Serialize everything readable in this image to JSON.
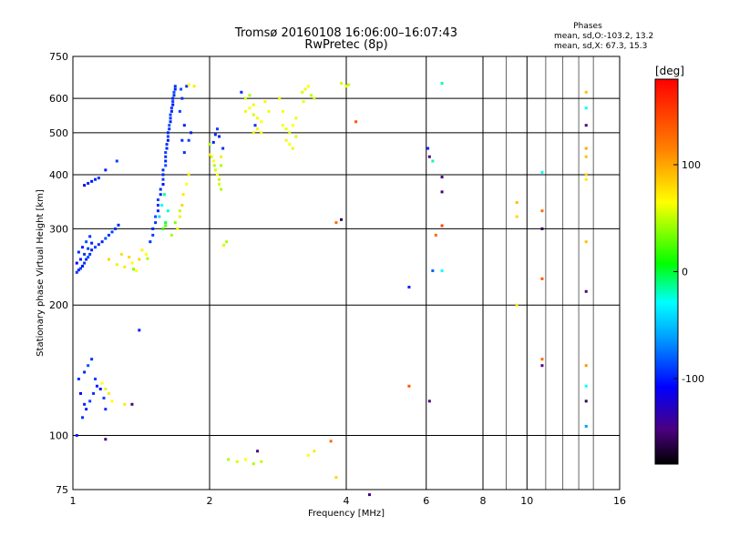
{
  "header": {
    "title_line1": "Tromsø 20160108 16:06:00–16:07:43",
    "title_line2": "RwPretec (8p)",
    "phases_title": "Phases",
    "phases_o": "mean, sd,O:-103.2, 13.2",
    "phases_x": "mean, sd,X:  67.3, 15.3"
  },
  "chart_data": {
    "type": "scatter",
    "title": "Tromsø 20160108 16:06:00–16:07:43",
    "subtitle": "RwPretec (8p)",
    "xlabel": "Frequency [MHz]",
    "ylabel": "Stationary phase Virtual Height [km]",
    "x_scale": "log",
    "y_scale": "log",
    "xlim": [
      1,
      16
    ],
    "ylim": [
      75,
      750
    ],
    "x_ticks": [
      "1",
      "2",
      "4",
      "6",
      "8",
      "10",
      "16"
    ],
    "y_ticks": [
      "75",
      "100",
      "200",
      "300",
      "400",
      "500",
      "600",
      "750"
    ],
    "colorbar": {
      "label": "[deg]",
      "range": [
        -180,
        180
      ],
      "ticks": [
        "100",
        "0",
        "-100"
      ]
    },
    "grid": true,
    "series": [
      {
        "values": [
          [
            1.02,
            238,
            -95
          ],
          [
            1.03,
            241,
            -100
          ],
          [
            1.04,
            243,
            -90
          ],
          [
            1.05,
            246,
            -105
          ],
          [
            1.06,
            250,
            -95
          ],
          [
            1.07,
            255,
            -100
          ],
          [
            1.08,
            258,
            -85
          ],
          [
            1.09,
            262,
            -95
          ],
          [
            1.1,
            268,
            -100
          ],
          [
            1.12,
            272,
            -90
          ],
          [
            1.14,
            276,
            -95
          ],
          [
            1.16,
            280,
            -100
          ],
          [
            1.18,
            285,
            -85
          ],
          [
            1.2,
            290,
            -95
          ],
          [
            1.22,
            295,
            -90
          ],
          [
            1.24,
            300,
            -95
          ],
          [
            1.26,
            306,
            -100
          ],
          [
            1.02,
            250,
            -110
          ],
          [
            1.04,
            255,
            -100
          ],
          [
            1.06,
            262,
            -95
          ],
          [
            1.08,
            270,
            -90
          ],
          [
            1.1,
            278,
            -100
          ],
          [
            1.03,
            265,
            -95
          ],
          [
            1.05,
            272,
            -100
          ],
          [
            1.07,
            280,
            -85
          ],
          [
            1.09,
            288,
            -95
          ],
          [
            1.06,
            378,
            -110
          ],
          [
            1.08,
            382,
            -100
          ],
          [
            1.1,
            386,
            -105
          ],
          [
            1.12,
            390,
            -100
          ],
          [
            1.14,
            393,
            -95
          ],
          [
            1.18,
            410,
            -100
          ],
          [
            1.25,
            430,
            -90
          ],
          [
            1.3,
            245,
            70
          ],
          [
            1.35,
            250,
            60
          ],
          [
            1.4,
            255,
            80
          ],
          [
            1.45,
            262,
            60
          ],
          [
            1.25,
            248,
            70
          ],
          [
            1.33,
            258,
            80
          ],
          [
            1.42,
            268,
            65
          ],
          [
            1.2,
            255,
            80
          ],
          [
            1.28,
            262,
            75
          ],
          [
            1.38,
            240,
            60
          ],
          [
            1.36,
            242,
            30
          ],
          [
            1.46,
            256,
            40
          ],
          [
            1.48,
            280,
            -95
          ],
          [
            1.5,
            290,
            -90
          ],
          [
            1.5,
            300,
            -100
          ],
          [
            1.52,
            310,
            -95
          ],
          [
            1.52,
            320,
            -85
          ],
          [
            1.54,
            330,
            -100
          ],
          [
            1.54,
            340,
            -95
          ],
          [
            1.54,
            350,
            -90
          ],
          [
            1.56,
            360,
            -100
          ],
          [
            1.56,
            370,
            -95
          ],
          [
            1.58,
            380,
            -105
          ],
          [
            1.58,
            390,
            -90
          ],
          [
            1.58,
            400,
            -100
          ],
          [
            1.58,
            410,
            -95
          ],
          [
            1.6,
            420,
            -85
          ],
          [
            1.6,
            430,
            -100
          ],
          [
            1.6,
            440,
            -95
          ],
          [
            1.6,
            450,
            -90
          ],
          [
            1.61,
            460,
            -100
          ],
          [
            1.61,
            470,
            -95
          ],
          [
            1.62,
            480,
            -105
          ],
          [
            1.62,
            490,
            -90
          ],
          [
            1.62,
            500,
            -100
          ],
          [
            1.63,
            510,
            -95
          ],
          [
            1.63,
            520,
            -85
          ],
          [
            1.64,
            530,
            -100
          ],
          [
            1.64,
            540,
            -95
          ],
          [
            1.64,
            550,
            -90
          ],
          [
            1.65,
            560,
            -100
          ],
          [
            1.65,
            570,
            -95
          ],
          [
            1.66,
            580,
            -105
          ],
          [
            1.66,
            590,
            -90
          ],
          [
            1.66,
            600,
            -100
          ],
          [
            1.67,
            610,
            -95
          ],
          [
            1.67,
            620,
            -85
          ],
          [
            1.68,
            630,
            -100
          ],
          [
            1.68,
            640,
            -95
          ],
          [
            1.55,
            320,
            -40
          ],
          [
            1.57,
            340,
            -30
          ],
          [
            1.59,
            360,
            -20
          ],
          [
            1.6,
            310,
            -10
          ],
          [
            1.62,
            330,
            -25
          ],
          [
            1.58,
            300,
            10
          ],
          [
            1.6,
            305,
            20
          ],
          [
            1.7,
            300,
            60
          ],
          [
            1.72,
            320,
            70
          ],
          [
            1.74,
            340,
            80
          ],
          [
            1.75,
            360,
            70
          ],
          [
            1.78,
            380,
            60
          ],
          [
            1.8,
            400,
            70
          ],
          [
            1.65,
            290,
            40
          ],
          [
            1.68,
            310,
            30
          ],
          [
            1.72,
            330,
            45
          ],
          [
            1.74,
            480,
            -95
          ],
          [
            1.76,
            520,
            -100
          ],
          [
            1.72,
            560,
            -90
          ],
          [
            1.74,
            600,
            -95
          ],
          [
            1.73,
            630,
            -85
          ],
          [
            1.78,
            640,
            -100
          ],
          [
            1.8,
            645,
            60
          ],
          [
            1.85,
            640,
            70
          ],
          [
            1.76,
            450,
            -95
          ],
          [
            1.8,
            480,
            -90
          ],
          [
            1.82,
            500,
            -100
          ],
          [
            2.0,
            470,
            40
          ],
          [
            2.0,
            445,
            70
          ],
          [
            2.02,
            440,
            50
          ],
          [
            2.04,
            430,
            60
          ],
          [
            2.05,
            420,
            40
          ],
          [
            2.06,
            410,
            50
          ],
          [
            2.08,
            400,
            60
          ],
          [
            2.1,
            390,
            45
          ],
          [
            2.12,
            420,
            40
          ],
          [
            2.12,
            440,
            70
          ],
          [
            2.14,
            460,
            -95
          ],
          [
            2.1,
            490,
            -100
          ],
          [
            2.08,
            510,
            -90
          ],
          [
            2.06,
            495,
            -95
          ],
          [
            2.04,
            475,
            -100
          ],
          [
            2.1,
            380,
            50
          ],
          [
            2.12,
            370,
            40
          ],
          [
            2.15,
            275,
            50
          ],
          [
            2.18,
            280,
            40
          ],
          [
            2.4,
            560,
            55
          ],
          [
            2.45,
            570,
            60
          ],
          [
            2.5,
            580,
            65
          ],
          [
            2.5,
            550,
            50
          ],
          [
            2.55,
            540,
            55
          ],
          [
            2.6,
            530,
            60
          ],
          [
            2.55,
            510,
            65
          ],
          [
            2.5,
            500,
            70
          ],
          [
            2.6,
            500,
            60
          ],
          [
            2.7,
            560,
            55
          ],
          [
            2.4,
            600,
            50
          ],
          [
            2.35,
            620,
            -95
          ],
          [
            2.45,
            610,
            40
          ],
          [
            2.65,
            590,
            65
          ],
          [
            2.52,
            520,
            -95
          ],
          [
            2.9,
            520,
            60
          ],
          [
            2.95,
            510,
            55
          ],
          [
            3.0,
            500,
            50
          ],
          [
            3.05,
            520,
            60
          ],
          [
            3.1,
            540,
            55
          ],
          [
            2.95,
            480,
            65
          ],
          [
            3.0,
            470,
            60
          ],
          [
            3.05,
            460,
            55
          ],
          [
            3.1,
            490,
            50
          ],
          [
            2.9,
            560,
            60
          ],
          [
            2.85,
            600,
            55
          ],
          [
            3.2,
            620,
            50
          ],
          [
            3.25,
            630,
            55
          ],
          [
            3.3,
            640,
            60
          ],
          [
            3.35,
            610,
            45
          ],
          [
            3.4,
            600,
            50
          ],
          [
            3.22,
            590,
            55
          ],
          [
            3.9,
            650,
            50
          ],
          [
            4.0,
            640,
            60
          ],
          [
            4.05,
            645,
            45
          ],
          [
            2.2,
            88,
            40
          ],
          [
            2.3,
            87,
            50
          ],
          [
            2.4,
            88,
            60
          ],
          [
            2.5,
            86,
            40
          ],
          [
            2.6,
            87,
            45
          ],
          [
            2.55,
            92,
            -150
          ],
          [
            3.3,
            90,
            60
          ],
          [
            3.4,
            92,
            70
          ],
          [
            3.8,
            80,
            80
          ],
          [
            4.5,
            73,
            -150
          ],
          [
            1.02,
            100,
            -100
          ],
          [
            1.05,
            110,
            -95
          ],
          [
            1.07,
            115,
            -100
          ],
          [
            1.09,
            120,
            -90
          ],
          [
            1.11,
            125,
            -95
          ],
          [
            1.13,
            130,
            -100
          ],
          [
            1.15,
            128,
            -105
          ],
          [
            1.17,
            122,
            -90
          ],
          [
            1.03,
            135,
            -95
          ],
          [
            1.06,
            140,
            -100
          ],
          [
            1.08,
            145,
            -85
          ],
          [
            1.1,
            150,
            -95
          ],
          [
            1.04,
            125,
            -110
          ],
          [
            1.06,
            118,
            -100
          ],
          [
            1.12,
            135,
            -90
          ],
          [
            1.18,
            115,
            -95
          ],
          [
            1.16,
            132,
            60
          ],
          [
            1.18,
            128,
            50
          ],
          [
            1.2,
            125,
            70
          ],
          [
            1.22,
            120,
            60
          ],
          [
            1.3,
            118,
            70
          ],
          [
            1.35,
            118,
            -150
          ],
          [
            1.4,
            175,
            -100
          ],
          [
            1.18,
            98,
            -150
          ],
          [
            3.8,
            310,
            130
          ],
          [
            4.2,
            530,
            140
          ],
          [
            3.9,
            315,
            -160
          ],
          [
            3.7,
            97,
            130
          ],
          [
            6.05,
            460,
            -100
          ],
          [
            6.1,
            440,
            -150
          ],
          [
            6.2,
            430,
            -20
          ],
          [
            6.3,
            290,
            130
          ],
          [
            6.2,
            240,
            -80
          ],
          [
            6.5,
            650,
            -20
          ],
          [
            6.5,
            395,
            -150
          ],
          [
            6.5,
            365,
            -150
          ],
          [
            6.5,
            305,
            150
          ],
          [
            6.5,
            240,
            -30
          ],
          [
            5.5,
            220,
            -100
          ],
          [
            6.1,
            120,
            -150
          ],
          [
            5.5,
            130,
            140
          ],
          [
            9.5,
            345,
            90
          ],
          [
            9.5,
            320,
            80
          ],
          [
            9.5,
            200,
            70
          ],
          [
            10.8,
            330,
            130
          ],
          [
            10.8,
            300,
            -160
          ],
          [
            10.8,
            230,
            140
          ],
          [
            10.8,
            150,
            130
          ],
          [
            10.8,
            145,
            -150
          ],
          [
            10.8,
            405,
            -30
          ],
          [
            13.5,
            620,
            90
          ],
          [
            13.5,
            570,
            -30
          ],
          [
            13.5,
            520,
            -150
          ],
          [
            13.5,
            460,
            100
          ],
          [
            13.5,
            440,
            90
          ],
          [
            13.5,
            400,
            80
          ],
          [
            13.5,
            390,
            70
          ],
          [
            13.5,
            280,
            90
          ],
          [
            13.5,
            215,
            -150
          ],
          [
            13.5,
            145,
            110
          ],
          [
            13.5,
            130,
            -30
          ],
          [
            13.5,
            120,
            -160
          ],
          [
            13.5,
            105,
            -60
          ]
        ]
      }
    ]
  }
}
